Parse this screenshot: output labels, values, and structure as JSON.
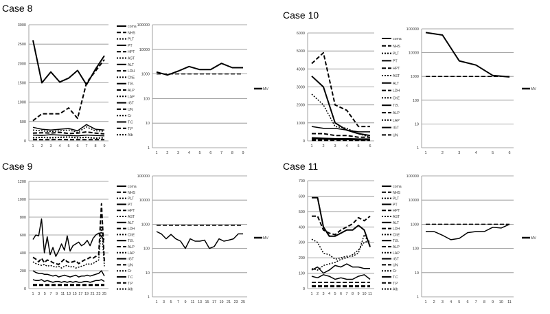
{
  "legend_default": [
    "coma",
    "NHS",
    "PLT",
    "PT",
    "HPT",
    "AST",
    "ALT",
    "LDH",
    "ChE",
    "T.B.",
    "ALP",
    "LAP",
    "rGT",
    "UN",
    "Cr",
    "T.C",
    "T.P",
    "Alb"
  ],
  "cases": [
    {
      "title": "Case 8",
      "x_ticks": [
        "1",
        "2",
        "3",
        "4",
        "5",
        "6",
        "7",
        "8",
        "9"
      ],
      "left_chart": {
        "type": "line",
        "ylim": [
          0,
          3000
        ],
        "y_ticks": [
          "0",
          "500",
          "1000",
          "1500",
          "2000",
          "2500",
          "3000"
        ],
        "legend": [
          "coma",
          "NHS",
          "PLT",
          "PT",
          "HPT",
          "AST",
          "ALT",
          "LDH",
          "ChE",
          "T.B.",
          "ALP",
          "LAP",
          "rGT",
          "UN",
          "Cr",
          "T.C",
          "T.P",
          "Alb"
        ],
        "series": [
          {
            "values": [
              2600,
              1500,
              1780,
              1520,
              1620,
              1820,
              1450,
              1850,
              2200
            ],
            "style": "solid",
            "w": 2
          },
          {
            "values": [
              520,
              700,
              700,
              700,
              850,
              580,
              1500,
              1800,
              2100
            ],
            "style": "dash",
            "w": 2
          },
          {
            "values": [
              350,
              300,
              280,
              300,
              320,
              260,
              420,
              300,
              280
            ],
            "style": "solid",
            "w": 1.5
          },
          {
            "values": [
              280,
              260,
              240,
              260,
              280,
              220,
              360,
              260,
              250
            ],
            "style": "dot",
            "w": 1.5
          },
          {
            "values": [
              200,
              210,
              200,
              220,
              190,
              200,
              230,
              200,
              180
            ],
            "style": "dash",
            "w": 2
          },
          {
            "values": [
              150,
              140,
              160,
              150,
              140,
              130,
              150,
              140,
              130
            ],
            "style": "solid",
            "w": 1.5
          },
          {
            "values": [
              80,
              90,
              80,
              90,
              100,
              80,
              90,
              70,
              80
            ],
            "style": "dot",
            "w": 2
          },
          {
            "values": [
              30,
              30,
              30,
              35,
              30,
              30,
              30,
              30,
              30
            ],
            "style": "dash",
            "w": 2
          }
        ]
      },
      "right_chart": {
        "type": "line",
        "scale": "log",
        "ylim": [
          1,
          100000
        ],
        "y_ticks": [
          "1",
          "10",
          "100",
          "1000",
          "10000",
          "100000"
        ],
        "legend": [
          "MV"
        ],
        "series": [
          {
            "values": [
              1200,
              900,
              1300,
              2000,
              1500,
              1500,
              2700,
              1800,
              1800
            ],
            "style": "solid",
            "w": 2
          },
          {
            "values": [
              1000,
              1000,
              1000,
              1000,
              1000,
              1000,
              1000,
              1000,
              1000
            ],
            "style": "dash",
            "w": 1.5
          }
        ]
      }
    },
    {
      "title": "Case 10",
      "x_ticks": [
        "1",
        "2",
        "3",
        "4",
        "5",
        "6"
      ],
      "left_chart": {
        "type": "line",
        "ylim": [
          0,
          6000
        ],
        "y_ticks": [
          "0",
          "1000",
          "2000",
          "3000",
          "4000",
          "5000",
          "6000"
        ],
        "legend": [
          "coma",
          "NHS",
          "PLT",
          "PT",
          "HPT",
          "AST",
          "ALT",
          "LDH",
          "ChE",
          "T.B.",
          "ALP",
          "LAP",
          "rGT",
          "UN"
        ],
        "series": [
          {
            "values": [
              4300,
              4900,
              2000,
              1700,
              800,
              800
            ],
            "style": "dash",
            "w": 2
          },
          {
            "values": [
              3600,
              3000,
              1000,
              600,
              400,
              300
            ],
            "style": "solid",
            "w": 2
          },
          {
            "values": [
              2600,
              2000,
              800,
              700,
              400,
              200
            ],
            "style": "dot",
            "w": 1.5
          },
          {
            "values": [
              800,
              700,
              700,
              600,
              500,
              500
            ],
            "style": "solid",
            "w": 1.5
          },
          {
            "values": [
              400,
              400,
              300,
              300,
              200,
              200
            ],
            "style": "dash",
            "w": 2
          },
          {
            "values": [
              150,
              120,
              100,
              100,
              80,
              80
            ],
            "style": "solid",
            "w": 3
          },
          {
            "values": [
              50,
              50,
              50,
              50,
              50,
              50
            ],
            "style": "dash",
            "w": 3
          }
        ]
      },
      "right_chart": {
        "type": "line",
        "scale": "log",
        "ylim": [
          1,
          100000
        ],
        "y_ticks": [
          "1",
          "10",
          "100",
          "1000",
          "10000",
          "100000"
        ],
        "legend": [
          "MV"
        ],
        "series": [
          {
            "values": [
              70000,
              55000,
              4500,
              3000,
              1100,
              950
            ],
            "style": "solid",
            "w": 2
          },
          {
            "values": [
              1000,
              1000,
              1000,
              1000,
              1000,
              1000
            ],
            "style": "dash",
            "w": 1.5
          }
        ]
      }
    },
    {
      "title": "Case 9",
      "x_ticks": [
        "1",
        "3",
        "5",
        "7",
        "9",
        "11",
        "13",
        "15",
        "17",
        "19",
        "21",
        "23",
        "25"
      ],
      "left_chart": {
        "type": "line",
        "ylim": [
          0,
          1200
        ],
        "y_ticks": [
          "0",
          "200",
          "400",
          "600",
          "800",
          "1000",
          "1200"
        ],
        "legend": [
          "coma",
          "NHS",
          "PLT",
          "PT",
          "HPT",
          "AST",
          "ALT",
          "LDH",
          "ChE",
          "T.B.",
          "ALP",
          "LAP",
          "rGT",
          "UN",
          "Cr",
          "T.C",
          "T.P",
          "Alb"
        ],
        "series": [
          {
            "values": [
              550,
              600,
              590,
              780,
              400,
              580,
              380,
              460,
              360,
              420,
              500,
              430,
              590,
              420,
              480,
              500,
              520,
              480,
              500,
              540,
              480,
              560,
              600,
              620,
              580,
              550
            ],
            "style": "solid",
            "w": 1.5
          },
          {
            "values": [
              350,
              330,
              300,
              340,
              290,
              320,
              310,
              290,
              280,
              270,
              300,
              330,
              300,
              290,
              300,
              310,
              280,
              300,
              320,
              330,
              350,
              340,
              360,
              380,
              950,
              300
            ],
            "style": "dash",
            "w": 2
          },
          {
            "values": [
              300,
              280,
              270,
              260,
              270,
              250,
              260,
              250,
              240,
              250,
              230,
              250,
              260,
              240,
              250,
              230,
              240,
              250,
              260,
              280,
              270,
              280,
              300,
              320,
              700,
              250
            ],
            "style": "dot",
            "w": 1.5
          },
          {
            "values": [
              200,
              180,
              170,
              170,
              160,
              160,
              150,
              140,
              150,
              130,
              140,
              150,
              140,
              130,
              140,
              150,
              130,
              140,
              140,
              150,
              140,
              150,
              160,
              170,
              200,
              140
            ],
            "style": "solid",
            "w": 1.5
          },
          {
            "values": [
              100,
              90,
              90,
              100,
              80,
              90,
              80,
              70,
              80,
              80,
              70,
              80,
              70,
              80,
              70,
              80,
              70,
              70,
              80,
              80,
              70,
              80,
              90,
              90,
              100,
              80
            ],
            "style": "solid",
            "w": 1.5
          },
          {
            "values": [
              40,
              40,
              40,
              40,
              40,
              40,
              40,
              40,
              40,
              40,
              40,
              40,
              40,
              40,
              40,
              40,
              40,
              40,
              40,
              40,
              40,
              40,
              40,
              40,
              40,
              40
            ],
            "style": "dash",
            "w": 3
          }
        ]
      },
      "right_chart": {
        "type": "line",
        "scale": "log",
        "ylim": [
          1,
          100000
        ],
        "y_ticks": [
          "1",
          "10",
          "100",
          "1000",
          "10000",
          "100000"
        ],
        "legend": [
          "MV"
        ],
        "series": [
          {
            "values": [
              500,
              400,
              250,
              380,
              250,
              200,
              100,
              250,
              200,
              200,
              220,
              100,
              120,
              250,
              200,
              220,
              250,
              400,
              400
            ],
            "style": "solid",
            "w": 1.5
          },
          {
            "values": [
              900,
              900,
              900,
              900,
              900,
              900,
              900,
              900,
              900,
              900,
              900,
              900,
              900,
              900,
              900,
              900,
              900,
              900,
              900
            ],
            "style": "dash",
            "w": 1.5
          }
        ]
      }
    },
    {
      "title": "Case 11",
      "x_ticks": [
        "1",
        "2",
        "3",
        "4",
        "5",
        "6",
        "7",
        "8",
        "9",
        "10",
        "11"
      ],
      "left_chart": {
        "type": "line",
        "ylim": [
          0,
          700
        ],
        "y_ticks": [
          "0",
          "100",
          "200",
          "300",
          "400",
          "500",
          "600",
          "700"
        ],
        "legend": [
          "coma",
          "NHS",
          "PLT",
          "PT",
          "HPT",
          "AST",
          "ALT",
          "LDH",
          "ChE",
          "T.B.",
          "ALP",
          "LAP",
          "rGT",
          "UN",
          "Cr",
          "T.C",
          "T.P",
          "Alb"
        ],
        "series": [
          {
            "values": [
              590,
              590,
              400,
              340,
              340,
              360,
              380,
              380,
              410,
              380,
              270
            ],
            "style": "solid",
            "w": 2
          },
          {
            "values": [
              470,
              470,
              380,
              360,
              350,
              380,
              400,
              420,
              460,
              440,
              470
            ],
            "style": "dash",
            "w": 2
          },
          {
            "values": [
              320,
              300,
              230,
              220,
              190,
              200,
              210,
              210,
              230,
              350,
              280
            ],
            "style": "dot",
            "w": 1.5
          },
          {
            "values": [
              130,
              120,
              150,
              160,
              170,
              190,
              200,
              220,
              250,
              300,
              310
            ],
            "style": "dot",
            "w": 1.5
          },
          {
            "values": [
              120,
              140,
              100,
              120,
              150,
              140,
              160,
              140,
              140,
              130,
              130
            ],
            "style": "solid",
            "w": 1.5
          },
          {
            "values": [
              80,
              70,
              90,
              80,
              60,
              70,
              60,
              60,
              80,
              90,
              60
            ],
            "style": "solid",
            "w": 1.5
          },
          {
            "values": [
              40,
              40,
              40,
              40,
              40,
              40,
              40,
              40,
              40,
              40,
              40
            ],
            "style": "dash",
            "w": 2
          },
          {
            "values": [
              15,
              15,
              15,
              15,
              15,
              15,
              15,
              15,
              15,
              15,
              15
            ],
            "style": "dash",
            "w": 3
          }
        ]
      },
      "right_chart": {
        "type": "line",
        "scale": "log",
        "ylim": [
          1,
          100000
        ],
        "y_ticks": [
          "1",
          "10",
          "100",
          "1000",
          "10000",
          "100000"
        ],
        "legend": [
          "MV"
        ],
        "series": [
          {
            "values": [
              500,
              500,
              350,
              230,
              260,
              450,
              500,
              500,
              750,
              700,
              1000
            ],
            "style": "solid",
            "w": 1.5
          },
          {
            "values": [
              1000,
              1000,
              1000,
              1000,
              1000,
              1000,
              1000,
              1000,
              1000,
              1000,
              1000
            ],
            "style": "dash",
            "w": 1.5
          }
        ]
      }
    }
  ],
  "chart_data": [
    {
      "type": "line",
      "title": "Case 8"
    },
    {
      "type": "line",
      "title": "Case 10"
    },
    {
      "type": "line",
      "title": "Case 9"
    },
    {
      "type": "line",
      "title": "Case 11"
    }
  ]
}
